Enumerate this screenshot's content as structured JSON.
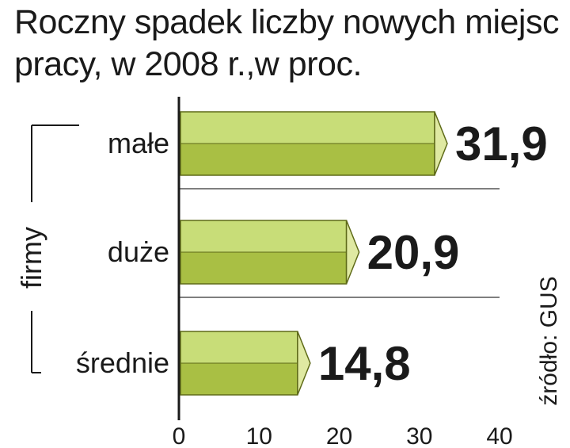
{
  "title": "Roczny spadek liczby nowych miejsc pracy, w 2008 r.,w proc.",
  "group_label": "firmy",
  "source": "źródło: GUS",
  "colors": {
    "bar_top": "#c8dd78",
    "bar_bottom": "#a9bf44",
    "bar_tip": "#dfe9a2",
    "bar_edge": "#5e6a18",
    "grid": "#555555"
  },
  "chart_data": {
    "type": "bar",
    "orientation": "horizontal",
    "title": "Roczny spadek liczby nowych miejsc pracy, w 2008 r.,w proc.",
    "categories": [
      "małe",
      "duże",
      "średnie"
    ],
    "values": [
      31.9,
      20.9,
      14.8
    ],
    "value_labels": [
      "31,9",
      "20,9",
      "14,8"
    ],
    "xlim": [
      0,
      40
    ],
    "x_ticks": [
      "0",
      "10",
      "20",
      "30",
      "40"
    ],
    "ylabel": "firmy",
    "grid": true,
    "source": "źródło: GUS"
  }
}
